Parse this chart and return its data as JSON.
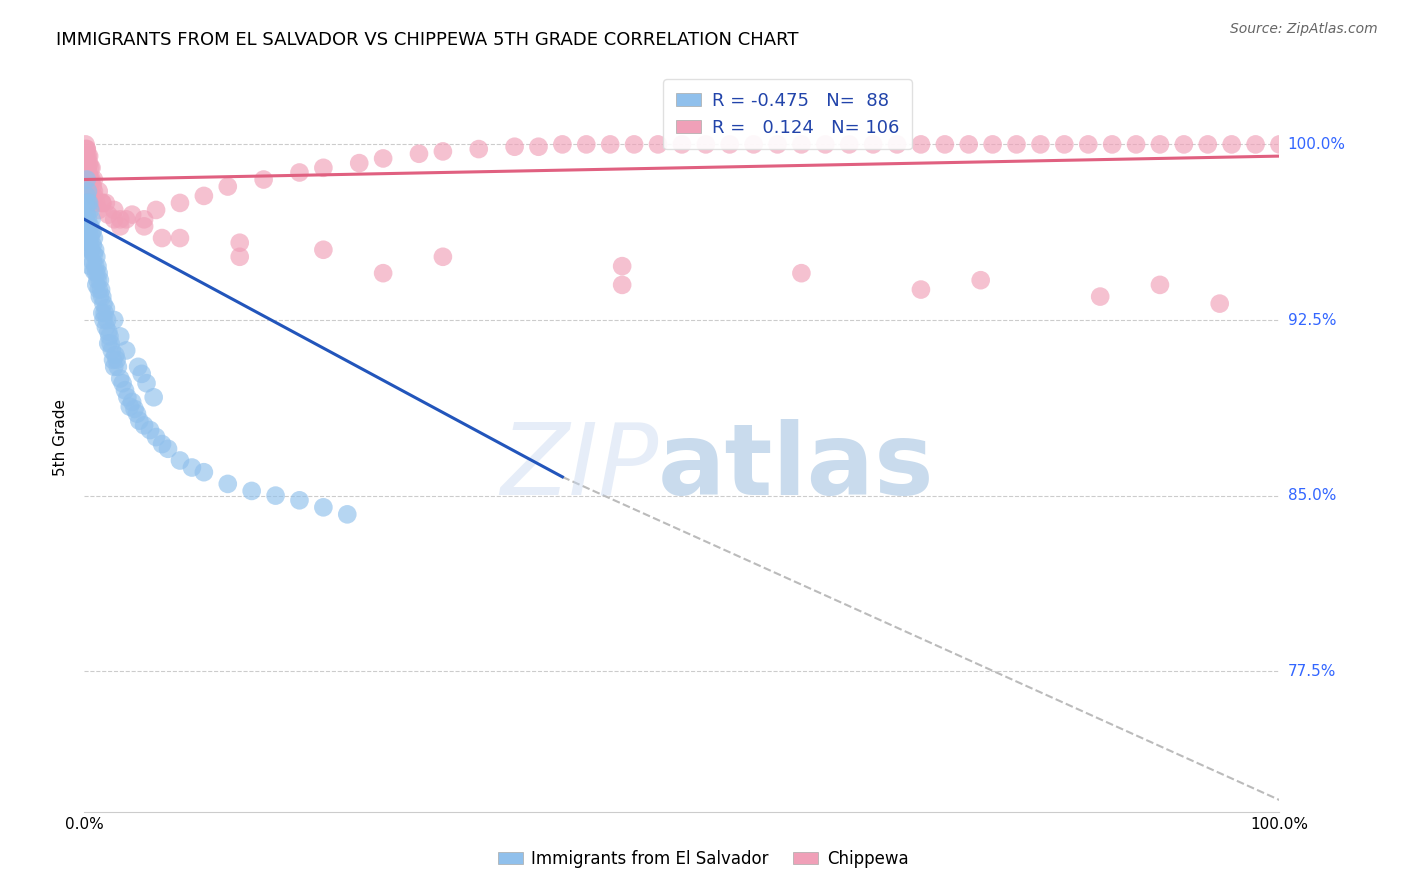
{
  "title": "IMMIGRANTS FROM EL SALVADOR VS CHIPPEWA 5TH GRADE CORRELATION CHART",
  "source": "Source: ZipAtlas.com",
  "ylabel": "5th Grade",
  "ytick_labels": [
    "100.0%",
    "92.5%",
    "85.0%",
    "77.5%"
  ],
  "ytick_values": [
    1.0,
    0.925,
    0.85,
    0.775
  ],
  "xmin": 0.0,
  "xmax": 1.0,
  "ymin": 0.715,
  "ymax": 1.035,
  "legend_R_blue": "-0.475",
  "legend_N_blue": "88",
  "legend_R_pink": "0.124",
  "legend_N_pink": "106",
  "blue_color": "#90C0EC",
  "pink_color": "#F0A0B8",
  "blue_line_color": "#2255BB",
  "pink_line_color": "#E06080",
  "trendline_blue_x0": 0.0,
  "trendline_blue_x1": 0.4,
  "trendline_blue_y0": 0.968,
  "trendline_blue_y1": 0.858,
  "trendline_ext_x0": 0.4,
  "trendline_ext_x1": 1.0,
  "trendline_ext_y0": 0.858,
  "trendline_ext_y1": 0.72,
  "trendline_pink_x0": 0.0,
  "trendline_pink_x1": 1.0,
  "trendline_pink_y0": 0.985,
  "trendline_pink_y1": 0.995,
  "blue_scatter_x": [
    0.001,
    0.001,
    0.002,
    0.002,
    0.002,
    0.002,
    0.003,
    0.003,
    0.003,
    0.003,
    0.003,
    0.004,
    0.004,
    0.004,
    0.005,
    0.005,
    0.005,
    0.005,
    0.005,
    0.006,
    0.006,
    0.006,
    0.007,
    0.007,
    0.007,
    0.008,
    0.008,
    0.008,
    0.009,
    0.009,
    0.01,
    0.01,
    0.01,
    0.011,
    0.011,
    0.012,
    0.012,
    0.013,
    0.013,
    0.014,
    0.015,
    0.015,
    0.016,
    0.016,
    0.017,
    0.018,
    0.018,
    0.019,
    0.02,
    0.02,
    0.021,
    0.022,
    0.023,
    0.024,
    0.025,
    0.026,
    0.027,
    0.028,
    0.03,
    0.032,
    0.034,
    0.036,
    0.038,
    0.04,
    0.042,
    0.044,
    0.046,
    0.05,
    0.055,
    0.06,
    0.065,
    0.07,
    0.08,
    0.09,
    0.1,
    0.12,
    0.14,
    0.16,
    0.18,
    0.2,
    0.22,
    0.025,
    0.03,
    0.035,
    0.045,
    0.048,
    0.052,
    0.058
  ],
  "blue_scatter_y": [
    0.975,
    0.968,
    0.985,
    0.978,
    0.97,
    0.962,
    0.98,
    0.975,
    0.968,
    0.96,
    0.955,
    0.975,
    0.965,
    0.958,
    0.972,
    0.965,
    0.96,
    0.955,
    0.948,
    0.968,
    0.962,
    0.955,
    0.963,
    0.957,
    0.95,
    0.96,
    0.953,
    0.946,
    0.955,
    0.948,
    0.952,
    0.945,
    0.94,
    0.948,
    0.942,
    0.945,
    0.938,
    0.942,
    0.935,
    0.938,
    0.935,
    0.928,
    0.932,
    0.925,
    0.928,
    0.93,
    0.922,
    0.925,
    0.92,
    0.915,
    0.918,
    0.915,
    0.912,
    0.908,
    0.905,
    0.91,
    0.908,
    0.905,
    0.9,
    0.898,
    0.895,
    0.892,
    0.888,
    0.89,
    0.887,
    0.885,
    0.882,
    0.88,
    0.878,
    0.875,
    0.872,
    0.87,
    0.865,
    0.862,
    0.86,
    0.855,
    0.852,
    0.85,
    0.848,
    0.845,
    0.842,
    0.925,
    0.918,
    0.912,
    0.905,
    0.902,
    0.898,
    0.892
  ],
  "pink_scatter_x": [
    0.001,
    0.001,
    0.001,
    0.001,
    0.001,
    0.001,
    0.002,
    0.002,
    0.002,
    0.002,
    0.003,
    0.003,
    0.003,
    0.003,
    0.004,
    0.004,
    0.005,
    0.005,
    0.005,
    0.006,
    0.007,
    0.008,
    0.01,
    0.012,
    0.015,
    0.02,
    0.025,
    0.03,
    0.04,
    0.05,
    0.06,
    0.08,
    0.1,
    0.12,
    0.15,
    0.18,
    0.2,
    0.23,
    0.25,
    0.28,
    0.3,
    0.33,
    0.36,
    0.38,
    0.4,
    0.42,
    0.44,
    0.46,
    0.48,
    0.5,
    0.52,
    0.54,
    0.56,
    0.58,
    0.6,
    0.62,
    0.64,
    0.66,
    0.68,
    0.7,
    0.72,
    0.74,
    0.76,
    0.78,
    0.8,
    0.82,
    0.84,
    0.86,
    0.88,
    0.9,
    0.92,
    0.94,
    0.96,
    0.98,
    1.0,
    0.002,
    0.004,
    0.006,
    0.008,
    0.012,
    0.018,
    0.025,
    0.035,
    0.05,
    0.08,
    0.13,
    0.2,
    0.3,
    0.45,
    0.6,
    0.75,
    0.9,
    0.001,
    0.002,
    0.003,
    0.005,
    0.008,
    0.015,
    0.03,
    0.065,
    0.13,
    0.25,
    0.45,
    0.7,
    0.85,
    0.95
  ],
  "pink_scatter_y": [
    1.0,
    0.998,
    0.995,
    0.992,
    0.988,
    0.985,
    0.998,
    0.995,
    0.99,
    0.985,
    0.995,
    0.99,
    0.985,
    0.98,
    0.992,
    0.986,
    0.99,
    0.985,
    0.98,
    0.985,
    0.982,
    0.978,
    0.975,
    0.972,
    0.975,
    0.97,
    0.968,
    0.965,
    0.97,
    0.968,
    0.972,
    0.975,
    0.978,
    0.982,
    0.985,
    0.988,
    0.99,
    0.992,
    0.994,
    0.996,
    0.997,
    0.998,
    0.999,
    0.999,
    1.0,
    1.0,
    1.0,
    1.0,
    1.0,
    1.0,
    1.0,
    1.0,
    1.0,
    1.0,
    1.0,
    1.0,
    1.0,
    1.0,
    1.0,
    1.0,
    1.0,
    1.0,
    1.0,
    1.0,
    1.0,
    1.0,
    1.0,
    1.0,
    1.0,
    1.0,
    1.0,
    1.0,
    1.0,
    1.0,
    1.0,
    0.998,
    0.995,
    0.99,
    0.985,
    0.98,
    0.975,
    0.972,
    0.968,
    0.965,
    0.96,
    0.958,
    0.955,
    0.952,
    0.948,
    0.945,
    0.942,
    0.94,
    0.995,
    0.992,
    0.988,
    0.984,
    0.98,
    0.975,
    0.968,
    0.96,
    0.952,
    0.945,
    0.94,
    0.938,
    0.935,
    0.932
  ]
}
